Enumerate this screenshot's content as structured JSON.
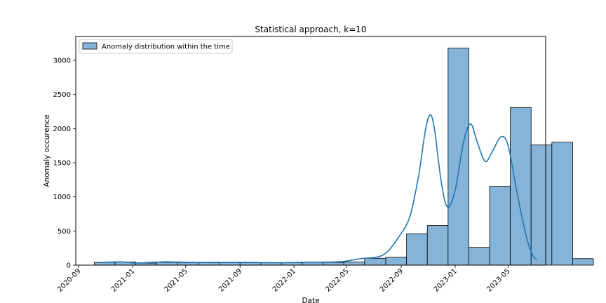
{
  "chart_data": {
    "type": "histogram",
    "title": "Statistical approach, k=10",
    "xlabel": "Date",
    "ylabel": "Anomaly occurence",
    "legend": {
      "label": "Anomaly distribution within the time",
      "placement": "upper-left"
    },
    "colors": {
      "bar_fill": "#86b4d8",
      "bar_edge": "#000000",
      "kde_line": "#1f77b4"
    },
    "x_ticks": [
      "2020-09",
      "2021-01",
      "2021-05",
      "2021-09",
      "2022-01",
      "2022-05",
      "2022-09",
      "2023-01",
      "2023-05"
    ],
    "y_ticks": [
      0,
      500,
      1000,
      1500,
      2000,
      2500,
      3000
    ],
    "xlim": [
      "2020-08-25",
      "2023-07-25"
    ],
    "ylim": [
      0,
      3350
    ],
    "grid": false,
    "bins": [
      {
        "start": "2020-10-06",
        "end": "2020-11-22",
        "value": 40
      },
      {
        "start": "2020-11-22",
        "end": "2021-01-08",
        "value": 45
      },
      {
        "start": "2021-01-08",
        "end": "2021-02-24",
        "value": 30
      },
      {
        "start": "2021-02-24",
        "end": "2021-04-12",
        "value": 40
      },
      {
        "start": "2021-04-12",
        "end": "2021-05-30",
        "value": 38
      },
      {
        "start": "2021-05-30",
        "end": "2021-07-16",
        "value": 35
      },
      {
        "start": "2021-07-16",
        "end": "2021-09-01",
        "value": 38
      },
      {
        "start": "2021-09-01",
        "end": "2021-10-18",
        "value": 35
      },
      {
        "start": "2021-10-18",
        "end": "2021-12-04",
        "value": 35
      },
      {
        "start": "2021-12-04",
        "end": "2022-01-20",
        "value": 35
      },
      {
        "start": "2022-01-20",
        "end": "2022-03-08",
        "value": 40
      },
      {
        "start": "2022-03-08",
        "end": "2022-04-24",
        "value": 40
      },
      {
        "start": "2022-04-24",
        "end": "2022-06-10",
        "value": 45
      },
      {
        "start": "2022-06-10",
        "end": "2022-07-28",
        "value": 100
      },
      {
        "start": "2022-07-28",
        "end": "2022-09-13",
        "value": 115
      },
      {
        "start": "2022-09-13",
        "end": "2022-10-30",
        "value": 460
      },
      {
        "start": "2022-10-30",
        "end": "2022-12-16",
        "value": 580
      },
      {
        "start": "2022-12-16",
        "end": "2023-02-01",
        "value": 3180
      },
      {
        "start": "2023-02-01",
        "end": "2023-03-20",
        "value": 260
      },
      {
        "start": "2023-03-20",
        "end": "2023-05-06",
        "value": 1155
      },
      {
        "start": "2023-05-06",
        "end": "2023-06-22",
        "value": 2310
      },
      {
        "start": "2023-06-22",
        "end": "2023-08-08",
        "value": 1760
      },
      {
        "start": "2023-08-08",
        "end": "2023-09-24",
        "value": 1800
      },
      {
        "start": "2023-09-24",
        "end": "2023-11-10",
        "value": 95
      }
    ],
    "kde": [
      {
        "x": "2020-10-21",
        "y": 40
      },
      {
        "x": "2020-12-05",
        "y": 48
      },
      {
        "x": "2021-01-10",
        "y": 32
      },
      {
        "x": "2021-03-15",
        "y": 48
      },
      {
        "x": "2021-05-15",
        "y": 40
      },
      {
        "x": "2021-07-15",
        "y": 40
      },
      {
        "x": "2021-09-15",
        "y": 40
      },
      {
        "x": "2021-11-15",
        "y": 36
      },
      {
        "x": "2022-01-15",
        "y": 40
      },
      {
        "x": "2022-03-15",
        "y": 45
      },
      {
        "x": "2022-04-25",
        "y": 55
      },
      {
        "x": "2022-06-01",
        "y": 95
      },
      {
        "x": "2022-07-10",
        "y": 120
      },
      {
        "x": "2022-08-01",
        "y": 200
      },
      {
        "x": "2022-08-25",
        "y": 400
      },
      {
        "x": "2022-09-20",
        "y": 700
      },
      {
        "x": "2022-10-10",
        "y": 1300
      },
      {
        "x": "2022-10-25",
        "y": 1950
      },
      {
        "x": "2022-11-05",
        "y": 2200
      },
      {
        "x": "2022-11-15",
        "y": 2000
      },
      {
        "x": "2022-12-01",
        "y": 1200
      },
      {
        "x": "2022-12-15",
        "y": 850
      },
      {
        "x": "2023-01-01",
        "y": 1100
      },
      {
        "x": "2023-01-20",
        "y": 1800
      },
      {
        "x": "2023-02-05",
        "y": 2070
      },
      {
        "x": "2023-02-20",
        "y": 1800
      },
      {
        "x": "2023-03-10",
        "y": 1520
      },
      {
        "x": "2023-03-25",
        "y": 1650
      },
      {
        "x": "2023-04-15",
        "y": 1880
      },
      {
        "x": "2023-05-01",
        "y": 1750
      },
      {
        "x": "2023-05-20",
        "y": 1100
      },
      {
        "x": "2023-06-10",
        "y": 450
      },
      {
        "x": "2023-06-25",
        "y": 150
      },
      {
        "x": "2023-07-05",
        "y": 80
      }
    ]
  }
}
